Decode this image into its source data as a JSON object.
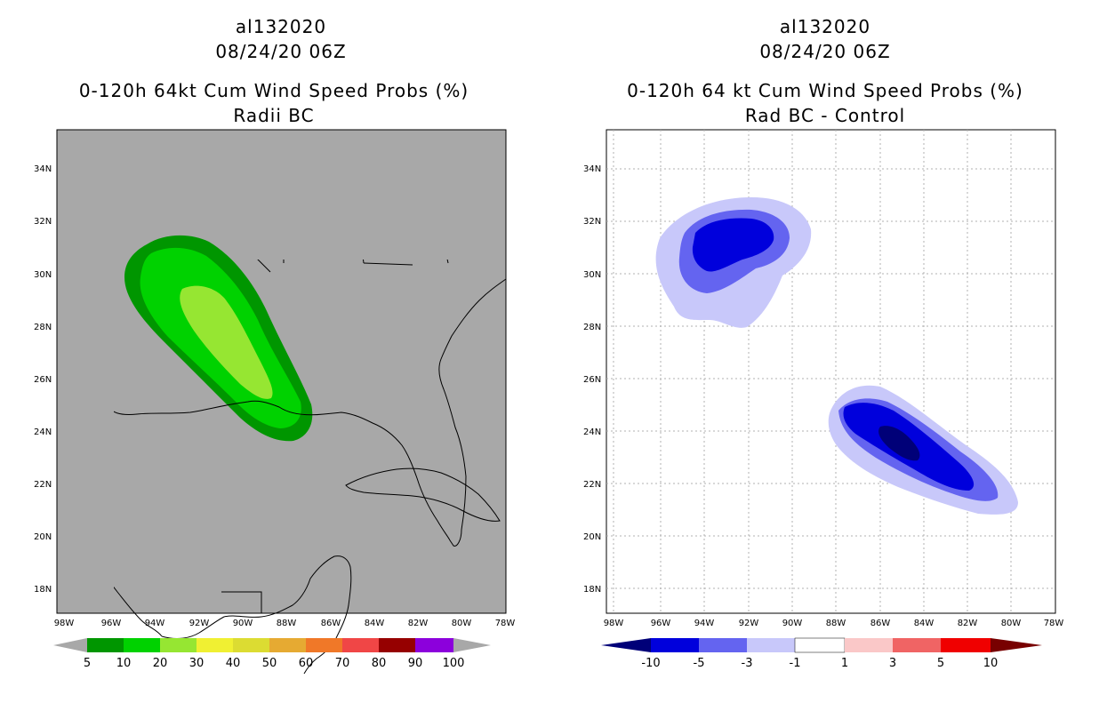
{
  "left": {
    "title_line1": "al132020",
    "title_line2": "08/24/20 06Z",
    "title_line3": "0-120h 64kt Cum Wind Speed Probs (%)",
    "title_line4": "Radii BC",
    "map_background": "#a8a8a8",
    "colorbar_labels": [
      "5",
      "10",
      "20",
      "30",
      "40",
      "50",
      "60",
      "70",
      "80",
      "90",
      "100"
    ],
    "colorbar_colors": [
      "#009600",
      "#00d200",
      "#96e632",
      "#f0f032",
      "#dcdc32",
      "#e6aa32",
      "#f07828",
      "#f04646",
      "#960000",
      "#8c00dc"
    ]
  },
  "right": {
    "title_line1": "al132020",
    "title_line2": "08/24/20 06Z",
    "title_line3": "0-120h 64 kt Cum Wind Speed Probs (%)",
    "title_line4": "Rad BC - Control",
    "map_background": "#ffffff",
    "colorbar_labels": [
      "-10",
      "-5",
      "-3",
      "-1",
      "1",
      "3",
      "5",
      "10"
    ],
    "colorbar_colors": [
      "#0000dc",
      "#6464f0",
      "#c8c8fa",
      "#ffffff",
      "#fac8c8",
      "#f06464",
      "#f00000"
    ]
  },
  "axes": {
    "lat_labels": [
      "34N",
      "32N",
      "30N",
      "28N",
      "26N",
      "24N",
      "22N",
      "20N",
      "18N"
    ],
    "lon_labels": [
      "98W",
      "96W",
      "94W",
      "92W",
      "90W",
      "88W",
      "86W",
      "84W",
      "82W",
      "80W",
      "78W"
    ]
  }
}
